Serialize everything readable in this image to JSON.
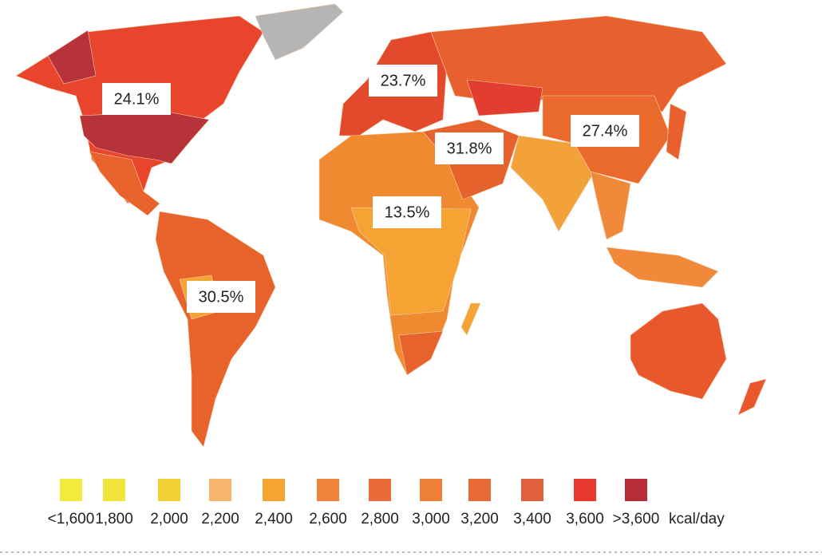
{
  "annotations": [
    {
      "label": "24.1%"
    },
    {
      "label": "23.7%"
    },
    {
      "label": "27.4%"
    },
    {
      "label": "31.8%"
    },
    {
      "label": "13.5%"
    },
    {
      "label": "30.5%"
    }
  ],
  "legend": {
    "items": [
      {
        "label": "<1,600",
        "color": "#f4ea3c"
      },
      {
        "label": "1,800",
        "color": "#f2e43a"
      },
      {
        "label": "2,000",
        "color": "#f1d033"
      },
      {
        "label": "2,200",
        "color": "#f6b56b"
      },
      {
        "label": "2,400",
        "color": "#f5a332"
      },
      {
        "label": "2,600",
        "color": "#f0823c"
      },
      {
        "label": "2,800",
        "color": "#ec6a3a"
      },
      {
        "label": "3,000",
        "color": "#ee8036"
      },
      {
        "label": "3,200",
        "color": "#ea6a35"
      },
      {
        "label": "3,400",
        "color": "#e0603c"
      },
      {
        "label": "3,600",
        "color": "#e8382e"
      },
      {
        "label": ">3,600",
        "color": "#b52d35"
      }
    ],
    "unit": "kcal/day"
  }
}
